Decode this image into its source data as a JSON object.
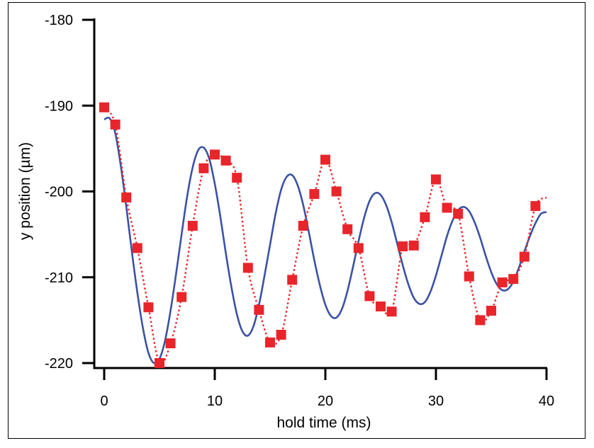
{
  "chart_data": {
    "type": "scatter",
    "title": "",
    "xlabel": "hold time (ms)",
    "ylabel": "y position (µm)",
    "xlim": [
      0,
      40
    ],
    "ylim": [
      -220,
      -180
    ],
    "x_ticks": [
      0,
      10,
      20,
      30,
      40
    ],
    "y_ticks": [
      -180,
      -190,
      -200,
      -210,
      -220
    ],
    "x_tick_labels": [
      "0",
      "10",
      "20",
      "30",
      "40"
    ],
    "y_tick_labels": [
      "-180",
      "-190",
      "-200",
      "-210",
      "-220"
    ],
    "grid": false,
    "legend": "none",
    "series": [
      {
        "style": "squares with dotted connecting line",
        "color": "#e8252b",
        "x": [
          0,
          1,
          2,
          3,
          4,
          5,
          6,
          7,
          8,
          9,
          10,
          11,
          12,
          13,
          14,
          15,
          16,
          17,
          18,
          19,
          20,
          21,
          22,
          23,
          24,
          25,
          26,
          27,
          28,
          29,
          30,
          31,
          32,
          33,
          34,
          35,
          36,
          37,
          38,
          39
        ],
        "y": [
          -190.2,
          -192.2,
          -200.7,
          -206.6,
          -213.5,
          -220.0,
          -217.7,
          -212.3,
          -204.0,
          -197.3,
          -195.7,
          -196.4,
          -198.4,
          -208.9,
          -213.8,
          -217.6,
          -216.7,
          -210.3,
          -204.0,
          -200.3,
          -196.3,
          -200.0,
          -204.4,
          -206.6,
          -212.2,
          -213.4,
          -214.0,
          -206.4,
          -206.3,
          -203.0,
          -198.6,
          -201.9,
          -202.6,
          -209.9,
          -215.0,
          -213.9,
          -210.6,
          -210.2,
          -207.6,
          -201.7
        ]
      },
      {
        "style": "solid fit curve",
        "color": "#3b52a3",
        "x": [
          0,
          0.5,
          1,
          1.5,
          2,
          2.5,
          3,
          3.5,
          4,
          4.5,
          5,
          5.5,
          6,
          6.5,
          7,
          7.5,
          8,
          8.5,
          9,
          9.5,
          10,
          10.5,
          11,
          11.5,
          12,
          12.5,
          13,
          13.5,
          14,
          14.5,
          15,
          15.5,
          16,
          16.5,
          17,
          17.5,
          18,
          18.5,
          19,
          19.5,
          20,
          20.5,
          21,
          21.5,
          22,
          22.5,
          23,
          23.5,
          24,
          24.5,
          25,
          25.5,
          26,
          26.5,
          27,
          27.5,
          28,
          28.5,
          29,
          29.5,
          30,
          30.5,
          31,
          31.5,
          32,
          32.5,
          33,
          33.5,
          34,
          34.5,
          35,
          35.5,
          36,
          36.5,
          37,
          37.5,
          38,
          38.5,
          39,
          39.5,
          40
        ],
        "y": [
          -191.6,
          -191.5,
          -193.2,
          -197.0,
          -201.8,
          -207.0,
          -211.8,
          -215.9,
          -218.8,
          -220.0,
          -219.5,
          -217.4,
          -213.9,
          -209.6,
          -205.0,
          -200.6,
          -197.2,
          -195.2,
          -194.9,
          -196.2,
          -199.1,
          -202.9,
          -207.2,
          -211.1,
          -214.3,
          -216.3,
          -216.8,
          -215.7,
          -213.2,
          -209.8,
          -206.2,
          -202.6,
          -199.8,
          -198.3,
          -198.1,
          -199.3,
          -201.6,
          -204.7,
          -208.0,
          -210.9,
          -213.2,
          -214.5,
          -214.7,
          -213.7,
          -211.6,
          -208.8,
          -205.8,
          -203.1,
          -201.1,
          -200.2,
          -200.4,
          -201.6,
          -203.6,
          -206.1,
          -208.6,
          -210.8,
          -212.4,
          -213.1,
          -212.9,
          -211.7,
          -209.8,
          -207.5,
          -205.2,
          -203.4,
          -202.2,
          -201.8,
          -202.3,
          -203.6,
          -205.4,
          -207.5,
          -209.4,
          -210.8,
          -211.5,
          -211.4,
          -210.5,
          -208.9,
          -207.0,
          -205.2,
          -203.7,
          -202.6,
          -202.4
        ]
      }
    ]
  }
}
